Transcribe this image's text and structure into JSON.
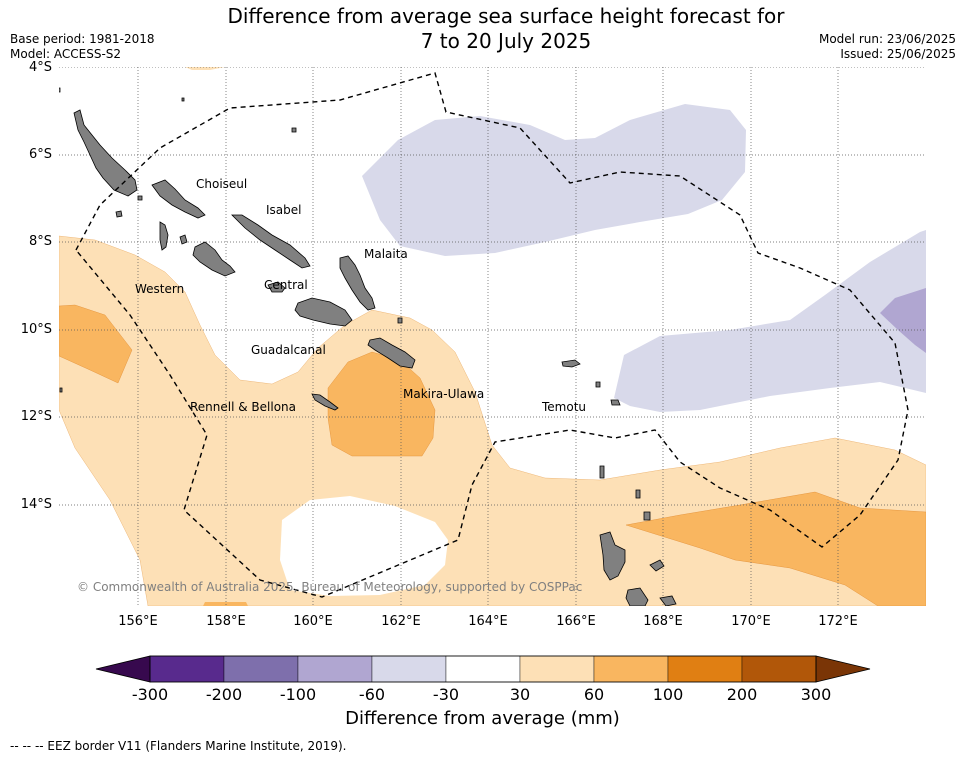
{
  "title_line1": "Difference from average sea surface height forecast for",
  "title_line2": "7 to 20 July 2025",
  "meta_left": {
    "base_period": "Base period: 1981-2018",
    "model": "Model: ACCESS-S2"
  },
  "meta_right": {
    "model_run": "Model run: 23/06/2025",
    "issued": "Issued: 25/06/2025"
  },
  "lat_labels": [
    "4°S",
    "6°S",
    "8°S",
    "10°S",
    "12°S",
    "14°S"
  ],
  "lon_labels": [
    "156°E",
    "158°E",
    "160°E",
    "162°E",
    "164°E",
    "166°E",
    "168°E",
    "170°E",
    "172°E"
  ],
  "region_labels": {
    "choiseul": "Choiseul",
    "isabel": "Isabel",
    "malaita": "Malaita",
    "western": "Western",
    "central": "Central",
    "guadalcanal": "Guadalcanal",
    "makira": "Makira-Ulawa",
    "rennell": "Rennell & Bellona",
    "temotu": "Temotu"
  },
  "copyright": "© Commonwealth of Australia 2025, Bureau of Meteorology, supported by COSPPac",
  "colorbar": {
    "ticks": [
      "-300",
      "-200",
      "-100",
      "-60",
      "-30",
      "30",
      "60",
      "100",
      "200",
      "300"
    ],
    "colors": [
      "#582a8d",
      "#7e6fac",
      "#b0a6d1",
      "#d8d9ea",
      "#ffffff",
      "#fde0b6",
      "#f9b660",
      "#e07f13",
      "#b15709"
    ],
    "under_color": "#37094e",
    "over_color": "#7a3506",
    "title": "Difference from average (mm)"
  },
  "legend": "--  --  -- EEZ border V11 (Flanders Marine Institute, 2019)."
}
